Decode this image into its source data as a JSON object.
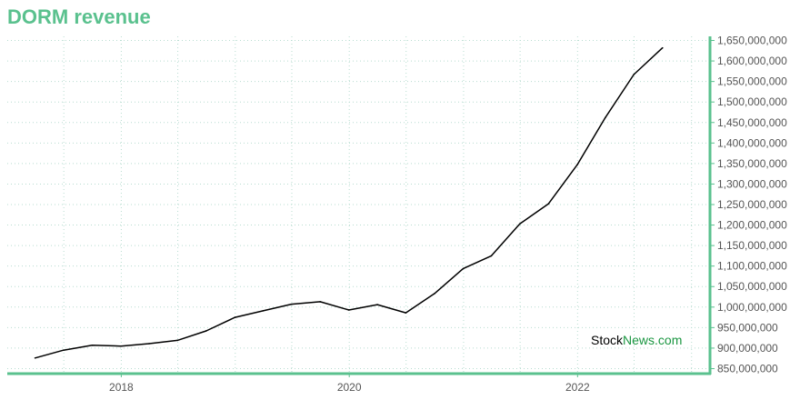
{
  "title": "DORM revenue",
  "watermark": {
    "part1": "Stock",
    "part2": "News",
    "part3": ".com"
  },
  "colors": {
    "accent": "#5ac18e",
    "line": "#000000",
    "grid": "#b7dcd0",
    "tick_text": "#555555",
    "watermark_green": "#1a9641"
  },
  "chart_data": {
    "type": "line",
    "title": "DORM revenue",
    "xlabel": "",
    "ylabel": "",
    "grid": true,
    "y_axis_side": "right",
    "xlim": [
      "2017-01-01",
      "2023-03-01"
    ],
    "ylim": [
      840000000,
      1660000000
    ],
    "x_ticks": [
      "2018",
      "2020",
      "2022"
    ],
    "y_ticks": [
      850000000,
      900000000,
      950000000,
      1000000000,
      1050000000,
      1100000000,
      1150000000,
      1200000000,
      1250000000,
      1300000000,
      1350000000,
      1400000000,
      1450000000,
      1500000000,
      1550000000,
      1600000000,
      1650000000
    ],
    "y_tick_labels": [
      "850,000,000",
      "900,000,000",
      "950,000,000",
      "1,000,000,000",
      "1,050,000,000",
      "1,100,000,000",
      "1,150,000,000",
      "1,200,000,000",
      "1,250,000,000",
      "1,300,000,000",
      "1,350,000,000",
      "1,400,000,000",
      "1,450,000,000",
      "1,500,000,000",
      "1,550,000,000",
      "1,600,000,000",
      "1,650,000,000"
    ],
    "series": [
      {
        "x": [
          "2017-03-31",
          "2017-06-30",
          "2017-09-30",
          "2017-12-31",
          "2018-03-31",
          "2018-06-30",
          "2018-09-30",
          "2018-12-31",
          "2019-03-31",
          "2019-06-30",
          "2019-09-30",
          "2019-12-31",
          "2020-03-31",
          "2020-06-30",
          "2020-09-30",
          "2020-12-31",
          "2021-03-31",
          "2021-06-30",
          "2021-09-30",
          "2021-12-31",
          "2022-03-31",
          "2022-06-30",
          "2022-09-30"
        ],
        "values": [
          876000000,
          895000000,
          907000000,
          905000000,
          911000000,
          919000000,
          942000000,
          975000000,
          991000000,
          1007000000,
          1013000000,
          993000000,
          1006000000,
          986000000,
          1033000000,
          1094000000,
          1125000000,
          1203000000,
          1252000000,
          1347000000,
          1462000000,
          1567000000,
          1632000000
        ]
      }
    ]
  }
}
